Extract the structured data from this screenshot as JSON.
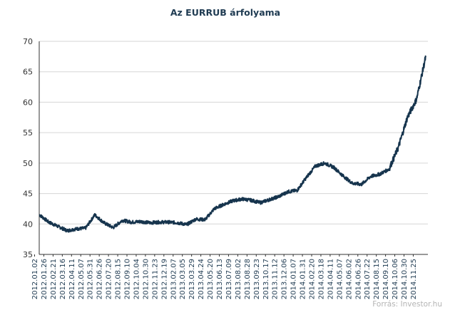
{
  "chart_data": {
    "type": "line",
    "title": "Az EURRUB árfolyama",
    "source": "Forrás: Investor.hu",
    "xlabel": "",
    "ylabel": "",
    "ylim": [
      35,
      70
    ],
    "yticks": [
      "35",
      "40",
      "45",
      "50",
      "55",
      "60",
      "65",
      "70"
    ],
    "grid": "horizontal",
    "legend": "none",
    "line_color": "#16344d",
    "grid_color": "#d6d6d6",
    "xtick_labels": [
      "2012.01.02",
      "2012.01.26",
      "2012.02.21",
      "2012.03.16",
      "2012.04.11",
      "2012.05.07",
      "2012.05.31",
      "2012.06.26",
      "2012.07.20",
      "2012.08.15",
      "2012.09.10",
      "2012.10.04",
      "2012.10.30",
      "2012.11.23",
      "2012.12.19",
      "2013.02.07",
      "2013.03.05",
      "2013.03.29",
      "2013.04.24",
      "2013.05.20",
      "2013.06.13",
      "2013.07.09",
      "2013.08.02",
      "2013.08.28",
      "2013.09.23",
      "2013.10.17",
      "2013.11.12",
      "2013.12.06",
      "2014.01.07",
      "2014.01.31",
      "2014.02.20",
      "2014.03.18",
      "2014.04.11",
      "2014.05.07",
      "2014.06.02",
      "2014.06.26",
      "2014.07.22",
      "2014.08.15",
      "2014.09.10",
      "2014.10.06",
      "2014.10.30",
      "2014.11.25"
    ],
    "series": [
      {
        "x": [
          "2012.01.02",
          "2012.01.26",
          "2012.02.21",
          "2012.03.16",
          "2012.04.11",
          "2012.05.07",
          "2012.05.31",
          "2012.06.26",
          "2012.07.20",
          "2012.08.15",
          "2012.09.10",
          "2012.10.04",
          "2012.10.30",
          "2012.11.23",
          "2012.12.19",
          "2013.02.07",
          "2013.03.05",
          "2013.03.29",
          "2013.04.24",
          "2013.05.20",
          "2013.06.13",
          "2013.07.09",
          "2013.08.02",
          "2013.08.28",
          "2013.09.23",
          "2013.10.17",
          "2013.11.12",
          "2013.12.06",
          "2014.01.07",
          "2014.01.31",
          "2014.02.20",
          "2014.03.18",
          "2014.04.11",
          "2014.05.07",
          "2014.06.02",
          "2014.06.26",
          "2014.07.22",
          "2014.08.15",
          "2014.09.10",
          "2014.10.06",
          "2014.10.30",
          "2014.11.25",
          "2014.12.17"
        ],
        "values": [
          41.5,
          40.3,
          39.6,
          38.9,
          39.2,
          39.3,
          41.5,
          40.2,
          39.4,
          40.6,
          40.3,
          40.4,
          40.2,
          40.3,
          40.3,
          40.2,
          39.9,
          40.8,
          40.7,
          42.5,
          43.2,
          43.8,
          44.1,
          43.9,
          43.5,
          44.0,
          44.5,
          45.3,
          45.5,
          47.6,
          49.5,
          50.0,
          49.3,
          47.9,
          46.7,
          46.5,
          47.8,
          48.2,
          49.0,
          52.5,
          57.5,
          60.5,
          67.5
        ]
      }
    ]
  }
}
